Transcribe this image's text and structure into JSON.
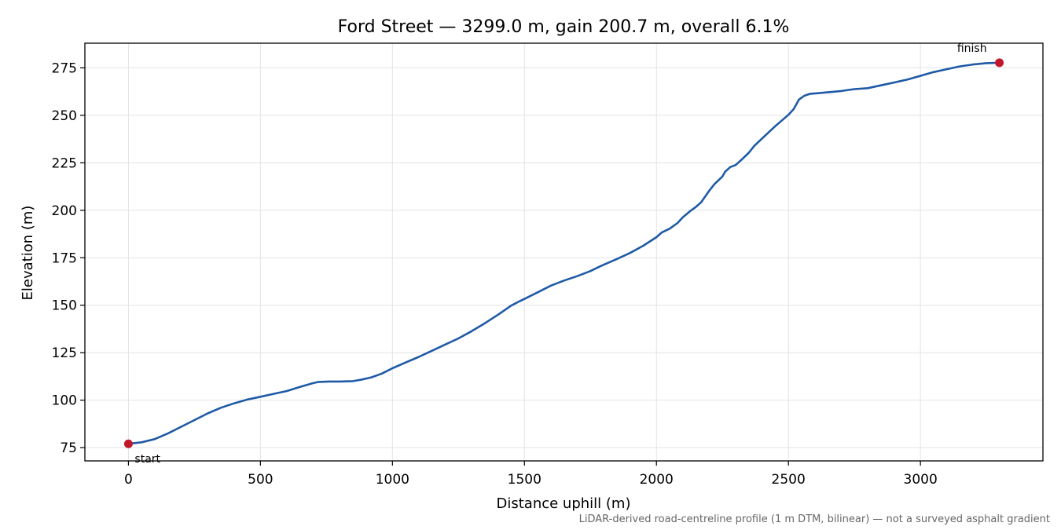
{
  "chart_data": {
    "type": "line",
    "title": "Ford Street — 3299.0 m, gain 200.7 m, overall 6.1%",
    "xlabel": "Distance uphill (m)",
    "ylabel": "Elevation (m)",
    "xlim": [
      -165,
      3464
    ],
    "ylim": [
      68,
      288
    ],
    "x_ticks": [
      0,
      500,
      1000,
      1500,
      2000,
      2500,
      3000
    ],
    "y_ticks": [
      75,
      100,
      125,
      150,
      175,
      200,
      225,
      250,
      275
    ],
    "x_tick_labels": [
      "0",
      "500",
      "1000",
      "1500",
      "2000",
      "2500",
      "3000"
    ],
    "y_tick_labels": [
      "75",
      "100",
      "125",
      "150",
      "175",
      "200",
      "225",
      "250",
      "275"
    ],
    "grid": true,
    "line_color": "#1f5aa6",
    "marker_color": "#c0182a",
    "series": [
      {
        "x": [
          0,
          50,
          100,
          150,
          200,
          250,
          300,
          350,
          400,
          450,
          500,
          550,
          600,
          650,
          700,
          720,
          760,
          800,
          850,
          880,
          920,
          960,
          1000,
          1050,
          1100,
          1150,
          1200,
          1250,
          1300,
          1350,
          1400,
          1450,
          1480,
          1500,
          1550,
          1600,
          1650,
          1700,
          1750,
          1780,
          1800,
          1850,
          1900,
          1950,
          2000,
          2020,
          2050,
          2080,
          2100,
          2130,
          2150,
          2170,
          2200,
          2220,
          2250,
          2260,
          2280,
          2300,
          2320,
          2350,
          2370,
          2400,
          2450,
          2500,
          2520,
          2540,
          2560,
          2580,
          2620,
          2700,
          2750,
          2800,
          2850,
          2900,
          2950,
          3000,
          3050,
          3100,
          3150,
          3200,
          3250,
          3299
        ],
        "y": [
          77,
          77.8,
          79.5,
          82.5,
          86,
          89.5,
          93,
          96,
          98.3,
          100.3,
          101.8,
          103.3,
          104.8,
          107,
          109,
          109.6,
          109.8,
          109.8,
          110,
          110.7,
          112,
          114,
          116.8,
          119.8,
          122.8,
          126,
          129.3,
          132.5,
          136.3,
          140.5,
          145,
          149.8,
          152,
          153.3,
          156.8,
          160.3,
          163,
          165.3,
          168,
          170,
          171.3,
          174.3,
          177.5,
          181.3,
          185.8,
          188.3,
          190.3,
          193.3,
          196.3,
          199.8,
          201.8,
          204.3,
          210.3,
          213.8,
          217.8,
          220.3,
          222.8,
          223.8,
          226.3,
          230.3,
          233.8,
          237.8,
          244.3,
          250.3,
          253.3,
          258.3,
          260.3,
          261.3,
          261.8,
          262.8,
          263.8,
          264.3,
          265.8,
          267.3,
          268.8,
          270.8,
          272.8,
          274.3,
          275.8,
          276.8,
          277.5,
          277.7
        ]
      }
    ],
    "markers": [
      {
        "label": "start",
        "x": 0,
        "y": 77
      },
      {
        "label": "finish",
        "x": 3299,
        "y": 277.7
      }
    ],
    "footnote": "LiDAR-derived road-centreline profile (1 m DTM, bilinear) — not a surveyed asphalt gradient"
  }
}
